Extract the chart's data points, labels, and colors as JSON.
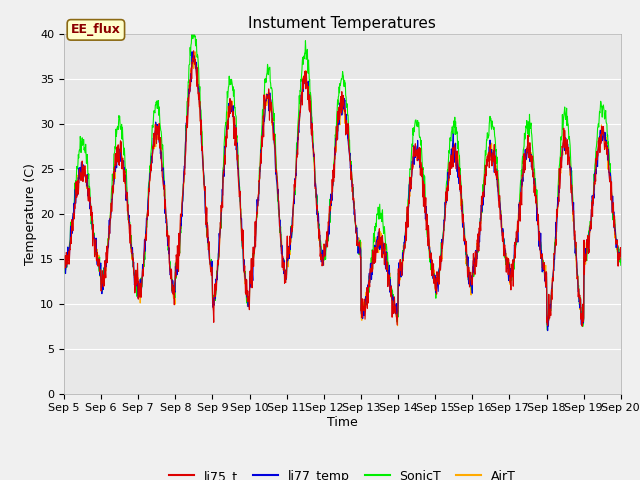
{
  "title": "Instument Temperatures",
  "xlabel": "Time",
  "ylabel": "Temperature (C)",
  "annotation": "EE_flux",
  "ylim": [
    0,
    40
  ],
  "yticks": [
    0,
    5,
    10,
    15,
    20,
    25,
    30,
    35,
    40
  ],
  "xlabels": [
    "Sep 5",
    "Sep 6",
    "Sep 7",
    "Sep 8",
    "Sep 9",
    "Sep 10",
    "Sep 11",
    "Sep 12",
    "Sep 13",
    "Sep 14",
    "Sep 15",
    "Sep 16",
    "Sep 17",
    "Sep 18",
    "Sep 19",
    "Sep 20"
  ],
  "line_colors": {
    "li75_t": "#dd0000",
    "li77_temp": "#0000dd",
    "SonicT": "#00ee00",
    "AirT": "#ffaa00"
  },
  "legend_labels": [
    "li75_t",
    "li77_temp",
    "SonicT",
    "AirT"
  ],
  "bg_color": "#e8e8e8",
  "fig_bg_color": "#f0f0f0",
  "title_fontsize": 11,
  "label_fontsize": 9,
  "tick_fontsize": 8,
  "annotation_fontsize": 9,
  "day_peaks": [
    25,
    27,
    29,
    37,
    32,
    33,
    35,
    32,
    17,
    27,
    27,
    27,
    27,
    28,
    29
  ],
  "day_mins": [
    14,
    12,
    11,
    14,
    10,
    13,
    15,
    16,
    9,
    13,
    12,
    14,
    13,
    8,
    15
  ]
}
